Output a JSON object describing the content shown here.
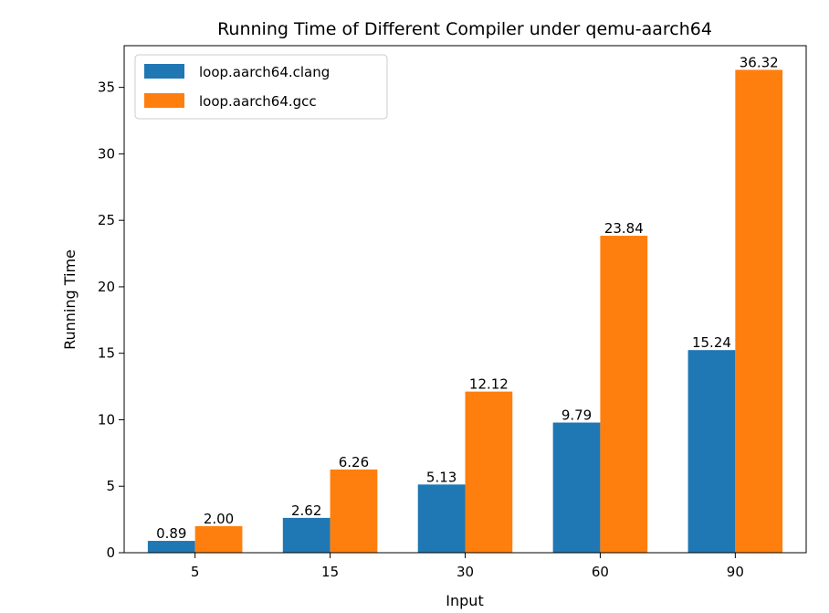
{
  "chart_data": {
    "type": "bar",
    "title": "Running Time of Different Compiler under qemu-aarch64",
    "xlabel": "Input",
    "ylabel": "Running Time",
    "categories": [
      "5",
      "15",
      "30",
      "60",
      "90"
    ],
    "series": [
      {
        "name": "loop.aarch64.clang",
        "color": "#1f77b4",
        "values": [
          0.89,
          2.62,
          5.13,
          9.79,
          15.24
        ],
        "labels": [
          "0.89",
          "2.62",
          "5.13",
          "9.79",
          "15.24"
        ]
      },
      {
        "name": "loop.aarch64.gcc",
        "color": "#ff7f0e",
        "values": [
          2.0,
          6.26,
          12.12,
          23.84,
          36.32
        ],
        "labels": [
          "2.00",
          "6.26",
          "12.12",
          "23.84",
          "36.32"
        ]
      }
    ],
    "ylim": [
      0,
      38.136
    ],
    "yticks": [
      0,
      5,
      10,
      15,
      20,
      25,
      30,
      35
    ],
    "grid": false,
    "legend": "upper-left"
  }
}
